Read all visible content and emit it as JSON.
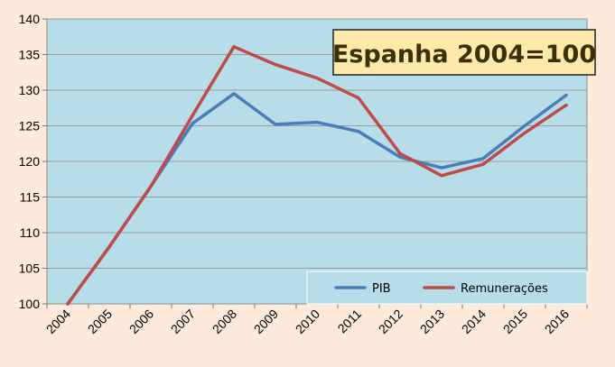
{
  "chart_data": {
    "type": "line",
    "title": "Espanha  2004=100",
    "categories": [
      "2004",
      "2005",
      "2006",
      "2007",
      "2008",
      "2009",
      "2010",
      "2011",
      "2012",
      "2013",
      "2014",
      "2015",
      "2016"
    ],
    "series": [
      {
        "name": "PIB",
        "color": "#4a7ebb",
        "values": [
          100,
          108,
          116.5,
          125.3,
          129.5,
          125.2,
          125.5,
          124.2,
          120.6,
          119.1,
          120.4,
          125.0,
          129.3
        ]
      },
      {
        "name": "Remunerações",
        "color": "#be4b48",
        "values": [
          100,
          108,
          116.5,
          126.4,
          136.1,
          133.6,
          131.7,
          128.9,
          121.1,
          118.0,
          119.6,
          124.0,
          127.9
        ]
      }
    ],
    "ylim": [
      100,
      140
    ],
    "yticks": [
      100,
      105,
      110,
      115,
      120,
      125,
      130,
      135,
      140
    ],
    "grid": true,
    "legend": "bottom-right",
    "xlabel": "",
    "ylabel": ""
  },
  "colors": {
    "background": "#fdeada",
    "plot_area": "#b7dde8",
    "title_box": "#fde9a9"
  }
}
